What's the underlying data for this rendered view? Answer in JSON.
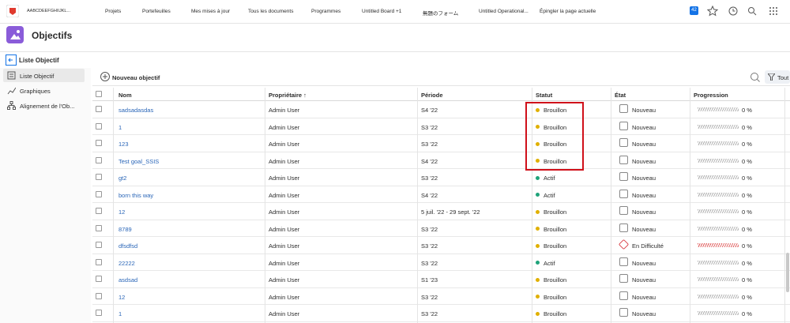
{
  "nav": {
    "items": [
      "AABCDEEFGHIIJKL...",
      "Projets",
      "Portefeuilles",
      "Mes mises à jour",
      "Tous les documents",
      "Programmes",
      "Untitled Board +1",
      "無題のフォーム",
      "Untitled Operational...",
      "Épingler la page actuelle"
    ],
    "badge": "42"
  },
  "header": {
    "title": "Objectifs"
  },
  "subheader": {
    "title": "Liste Objectif"
  },
  "sidebar": {
    "items": [
      "Liste Objectif",
      "Graphiques",
      "Alignement de l'Ob..."
    ]
  },
  "toolbar": {
    "new_button": "Nouveau objectif",
    "filter": "Tout"
  },
  "table": {
    "columns": [
      "Nom",
      "Propriétaire ↑",
      "Période",
      "Statut",
      "État",
      "Progression"
    ],
    "rows": [
      {
        "name": "sadsadasdas",
        "owner": "Admin User",
        "period": "S4 '22",
        "status": "Brouillon",
        "status_color": "#e0b000",
        "state": "Nouveau",
        "state_color": "#888888",
        "progress": "0 %",
        "progress_color": "#b0b0b0"
      },
      {
        "name": "1",
        "owner": "Admin User",
        "period": "S3 '22",
        "status": "Brouillon",
        "status_color": "#e0b000",
        "state": "Nouveau",
        "state_color": "#888888",
        "progress": "0 %",
        "progress_color": "#b0b0b0"
      },
      {
        "name": "123",
        "owner": "Admin User",
        "period": "S3 '22",
        "status": "Brouillon",
        "status_color": "#e0b000",
        "state": "Nouveau",
        "state_color": "#888888",
        "progress": "0 %",
        "progress_color": "#b0b0b0"
      },
      {
        "name": "Test goal_SSIS",
        "owner": "Admin User",
        "period": "S4 '22",
        "status": "Brouillon",
        "status_color": "#e0b000",
        "state": "Nouveau",
        "state_color": "#888888",
        "progress": "0 %",
        "progress_color": "#b0b0b0"
      },
      {
        "name": "gt2",
        "owner": "Admin User",
        "period": "S3 '22",
        "status": "Actif",
        "status_color": "#1fa37a",
        "state": "Nouveau",
        "state_color": "#888888",
        "progress": "0 %",
        "progress_color": "#b0b0b0"
      },
      {
        "name": "born this way",
        "owner": "Admin User",
        "period": "S4 '22",
        "status": "Actif",
        "status_color": "#1fa37a",
        "state": "Nouveau",
        "state_color": "#888888",
        "progress": "0 %",
        "progress_color": "#b0b0b0"
      },
      {
        "name": "12",
        "owner": "Admin User",
        "period": "5 juil. '22 - 29 sept. '22",
        "status": "Brouillon",
        "status_color": "#e0b000",
        "state": "Nouveau",
        "state_color": "#888888",
        "progress": "0 %",
        "progress_color": "#b0b0b0"
      },
      {
        "name": "8789",
        "owner": "Admin User",
        "period": "S3 '22",
        "status": "Brouillon",
        "status_color": "#e0b000",
        "state": "Nouveau",
        "state_color": "#888888",
        "progress": "0 %",
        "progress_color": "#b0b0b0"
      },
      {
        "name": "dfsdfsd",
        "owner": "Admin User",
        "period": "S3 '22",
        "status": "Brouillon",
        "status_color": "#e0b000",
        "state": "En Difficulté",
        "state_color": "#d7373f",
        "progress": "0 %",
        "progress_color": "#e06060"
      },
      {
        "name": "22222",
        "owner": "Admin User",
        "period": "S3 '22",
        "status": "Actif",
        "status_color": "#1fa37a",
        "state": "Nouveau",
        "state_color": "#888888",
        "progress": "0 %",
        "progress_color": "#b0b0b0"
      },
      {
        "name": "asdsad",
        "owner": "Admin User",
        "period": "S1 '23",
        "status": "Brouillon",
        "status_color": "#e0b000",
        "state": "Nouveau",
        "state_color": "#888888",
        "progress": "0 %",
        "progress_color": "#b0b0b0"
      },
      {
        "name": "12",
        "owner": "Admin User",
        "period": "S3 '22",
        "status": "Brouillon",
        "status_color": "#e0b000",
        "state": "Nouveau",
        "state_color": "#888888",
        "progress": "0 %",
        "progress_color": "#b0b0b0"
      },
      {
        "name": "1",
        "owner": "Admin User",
        "period": "S3 '22",
        "status": "Brouillon",
        "status_color": "#e0b000",
        "state": "Nouveau",
        "state_color": "#888888",
        "progress": "0 %",
        "progress_color": "#b0b0b0"
      }
    ]
  }
}
